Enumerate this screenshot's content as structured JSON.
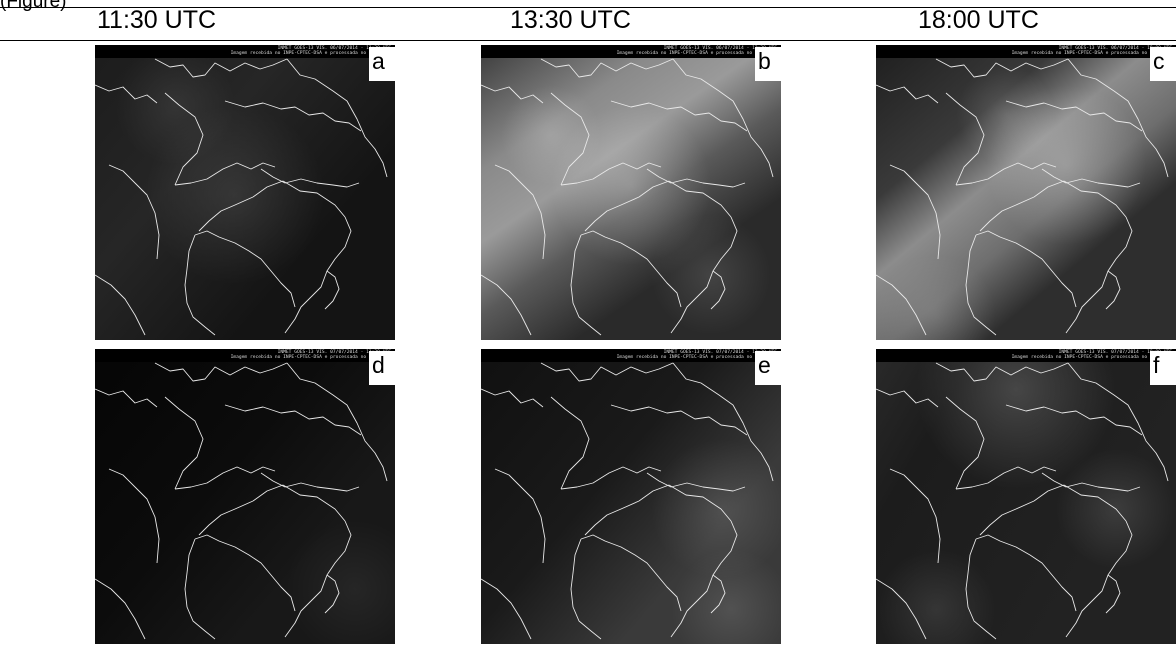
{
  "fragment": "(Figure)",
  "columns": [
    {
      "time": "11:30 UTC"
    },
    {
      "time": "13:30 UTC"
    },
    {
      "time": "18:00 UTC"
    }
  ],
  "panels": [
    {
      "label": "a",
      "header_line1": "INMET GOES-13 VIS. 06/07/2014 - 11:30 UTC",
      "header_line2": "Imagem recebida no INPE-CPTEC-DSA e processada no INMET-DA",
      "cloud": "dark"
    },
    {
      "label": "b",
      "header_line1": "INMET GOES-13 VIS. 06/07/2014 - 13:30 UTC",
      "header_line2": "Imagem recebida no INPE-CPTEC-DSA e processada no INMET-DA",
      "cloud": "bright-band"
    },
    {
      "label": "c",
      "header_line1": "INMET GOES-13 VIS. 06/07/2014 - 18:00 UTC",
      "header_line2": "Imagem recebida no INPE-CPTEC-DSA e processada no INMET-DA",
      "cloud": "bright-band-east"
    },
    {
      "label": "d",
      "header_line1": "INMET GOES-13 VIS. 07/07/2014 - 11:30 UTC",
      "header_line2": "Imagem recebida no INPE-CPTEC-DSA e processada no INMET-DA",
      "cloud": "very-dark"
    },
    {
      "label": "e",
      "header_line1": "INMET GOES-13 VIS. 07/07/2014 - 13:30 UTC",
      "header_line2": "Imagem recebida no INPE-CPTEC-DSA e processada no INMET-DA",
      "cloud": "faint-east"
    },
    {
      "label": "f",
      "header_line1": "INMET GOES-13 VIS. 07/07/2014 - 18:00 UTC",
      "header_line2": "Imagem recebida no INPE-CPTEC-DSA e processada no INMET-DA",
      "cloud": "faint-north"
    }
  ]
}
